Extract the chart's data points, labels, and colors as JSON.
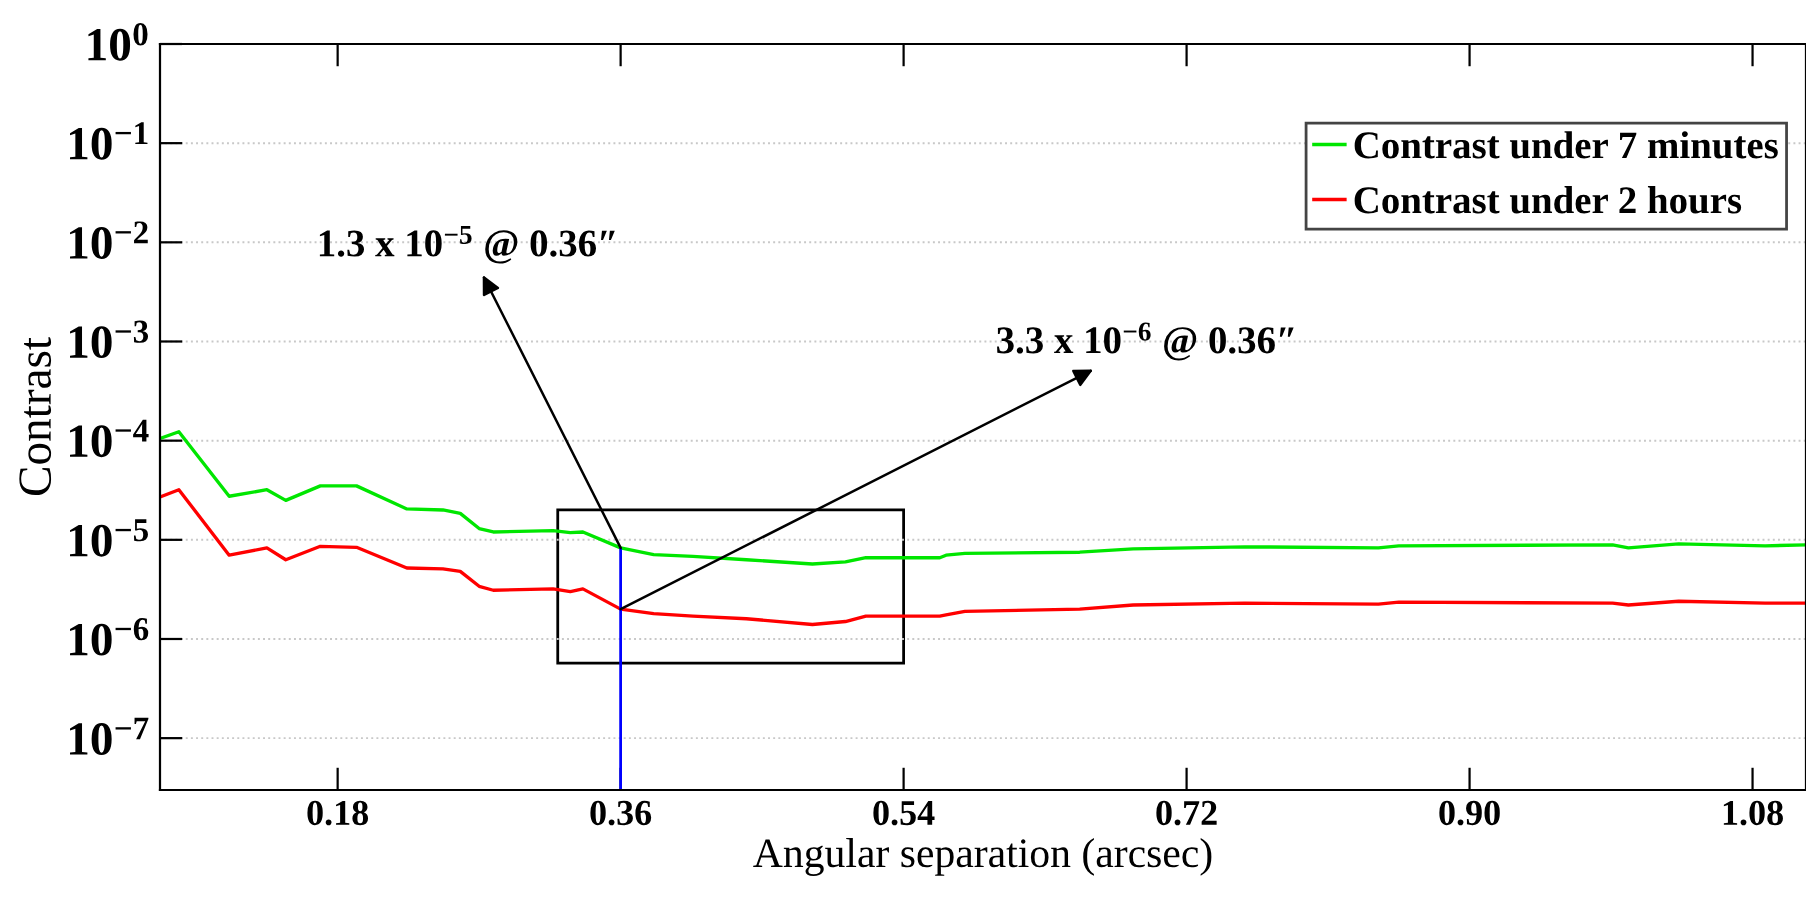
{
  "chart_data": {
    "type": "line",
    "xlabel": "Angular separation (arcsec)",
    "ylabel": "Contrast",
    "x": [
      0.067,
      0.079,
      0.111,
      0.135,
      0.147,
      0.169,
      0.192,
      0.224,
      0.247,
      0.258,
      0.27,
      0.279,
      0.317,
      0.328,
      0.336,
      0.36,
      0.381,
      0.406,
      0.44,
      0.482,
      0.503,
      0.516,
      0.563,
      0.567,
      0.579,
      0.652,
      0.686,
      0.757,
      0.842,
      0.855,
      0.991,
      1.001,
      1.033,
      1.088,
      1.114
    ],
    "series": [
      {
        "name": "Contrast under 7 minutes",
        "color": "#00e600",
        "values": [
          0.000105,
          0.000123,
          2.75e-05,
          3.2e-05,
          2.5e-05,
          3.5e-05,
          3.5e-05,
          2.05e-05,
          2e-05,
          1.85e-05,
          1.3e-05,
          1.2e-05,
          1.24e-05,
          1.18e-05,
          1.2e-05,
          8.3e-06,
          7.1e-06,
          6.8e-06,
          6.3e-06,
          5.7e-06,
          6e-06,
          6.6e-06,
          6.6e-06,
          7e-06,
          7.3e-06,
          7.5e-06,
          8.1e-06,
          8.5e-06,
          8.3e-06,
          8.7e-06,
          8.9e-06,
          8.3e-06,
          9.1e-06,
          8.7e-06,
          8.9e-06
        ]
      },
      {
        "name": "Contrast under 2 hours",
        "color": "#ff0000",
        "values": [
          2.7e-05,
          3.2e-05,
          7e-06,
          8.3e-06,
          6.3e-06,
          8.6e-06,
          8.4e-06,
          5.2e-06,
          5.1e-06,
          4.8e-06,
          3.4e-06,
          3.1e-06,
          3.2e-06,
          3e-06,
          3.2e-06,
          2e-06,
          1.8e-06,
          1.7e-06,
          1.6e-06,
          1.4e-06,
          1.5e-06,
          1.7e-06,
          1.7e-06,
          1.75e-06,
          1.9e-06,
          2e-06,
          2.2e-06,
          2.3e-06,
          2.25e-06,
          2.35e-06,
          2.3e-06,
          2.2e-06,
          2.4e-06,
          2.3e-06,
          2.3e-06
        ]
      }
    ],
    "log": "y",
    "xlim": [
      0.067,
      1.114
    ],
    "ylim": [
      3e-08,
      1
    ],
    "xticks": [
      {
        "value": 0.18,
        "label": "0.18"
      },
      {
        "value": 0.36,
        "label": "0.36"
      },
      {
        "value": 0.54,
        "label": "0.54"
      },
      {
        "value": 0.72,
        "label": "0.72"
      },
      {
        "value": 0.9,
        "label": "0.90"
      },
      {
        "value": 1.08,
        "label": "1.08"
      }
    ],
    "yticks": [
      {
        "value": 1,
        "label": "10$^{0}$"
      },
      {
        "value": 0.1,
        "label": "10$^{−1}$"
      },
      {
        "value": 0.01,
        "label": "10$^{−2}$"
      },
      {
        "value": 0.001,
        "label": "10$^{−3}$"
      },
      {
        "value": 0.0001,
        "label": "10$^{−4}$"
      },
      {
        "value": 1e-05,
        "label": "10$^{−5}$"
      },
      {
        "value": 1e-06,
        "label": "10$^{−6}$"
      },
      {
        "value": 1e-07,
        "label": "10$^{−7}$"
      }
    ],
    "grid": "y",
    "legend": "top right",
    "line_style": "solid",
    "marker": "none",
    "ref_lines": [
      {
        "axis": "x",
        "value": 0.36,
        "color": "#0000ff",
        "line_style": "solid"
      }
    ],
    "annotations": [
      {
        "text": "1.3 x 10$^{−5}$ @ 0.36″",
        "x": 0.36,
        "y": 8.3e-06
      },
      {
        "text": "3.3 x 10$^{−6}$ @ 0.36″",
        "x": 0.36,
        "y": 2e-06
      }
    ]
  }
}
